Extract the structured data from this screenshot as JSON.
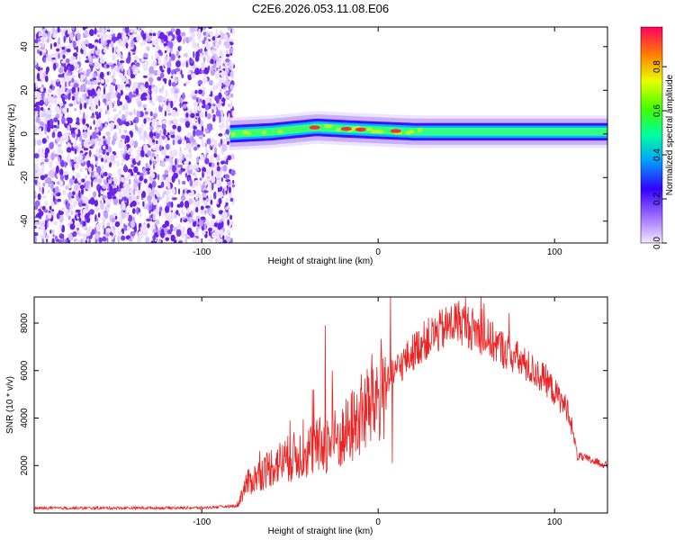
{
  "title": "C2E6.2026.053.11.08.E06",
  "chart_data": [
    {
      "type": "heatmap",
      "name": "spectrogram",
      "xlabel": "Height of straight line (km)",
      "ylabel": "Frequency (Hz)",
      "xlim": [
        -195,
        130
      ],
      "ylim": [
        -50,
        49
      ],
      "xticks": [
        -100,
        0,
        100
      ],
      "yticks": [
        -40,
        -20,
        0,
        20,
        40
      ],
      "noise_region_x": [
        -195,
        -82
      ],
      "signal_band": {
        "x_start": -84,
        "x_end": 130,
        "center_hz": [
          {
            "x": -84,
            "y": 0
          },
          {
            "x": -60,
            "y": 1
          },
          {
            "x": -35,
            "y": 3
          },
          {
            "x": -10,
            "y": 2
          },
          {
            "x": 20,
            "y": 1
          },
          {
            "x": 60,
            "y": 1
          },
          {
            "x": 100,
            "y": 1
          },
          {
            "x": 130,
            "y": 1
          }
        ],
        "half_width_hz": 5,
        "peak_amplitude_x": [
          -36,
          -18,
          -10,
          10
        ]
      },
      "colorbar": {
        "label": "Normalized spectral amplitude",
        "range": [
          0,
          1
        ],
        "ticks": [
          "0.0",
          "0.2",
          "0.4",
          "0.6",
          "0.8"
        ]
      }
    },
    {
      "type": "line",
      "name": "snr",
      "xlabel": "Height of straight line (km)",
      "ylabel": "SNR (10 * v/v)",
      "xlim": [
        -195,
        130
      ],
      "ylim": [
        0,
        9100
      ],
      "xticks": [
        -100,
        0,
        100
      ],
      "yticks": [
        2000,
        4000,
        6000,
        8000
      ],
      "color": "#ee2222",
      "envelope": [
        {
          "x": -195,
          "y": 200
        },
        {
          "x": -100,
          "y": 220
        },
        {
          "x": -80,
          "y": 300
        },
        {
          "x": -75,
          "y": 1200
        },
        {
          "x": -60,
          "y": 2000
        },
        {
          "x": -40,
          "y": 2600
        },
        {
          "x": -20,
          "y": 3200
        },
        {
          "x": -5,
          "y": 4500
        },
        {
          "x": 10,
          "y": 6000
        },
        {
          "x": 25,
          "y": 7200
        },
        {
          "x": 45,
          "y": 8100
        },
        {
          "x": 55,
          "y": 7700
        },
        {
          "x": 75,
          "y": 6700
        },
        {
          "x": 95,
          "y": 5600
        },
        {
          "x": 108,
          "y": 4300
        },
        {
          "x": 113,
          "y": 2400
        },
        {
          "x": 130,
          "y": 2000
        }
      ],
      "spikes": [
        {
          "x": -30,
          "y": 7900
        },
        {
          "x": -26,
          "y": 6000
        },
        {
          "x": -50,
          "y": 3900
        },
        {
          "x": 7,
          "y": 9100
        },
        {
          "x": 8,
          "y": 2100
        }
      ]
    }
  ]
}
